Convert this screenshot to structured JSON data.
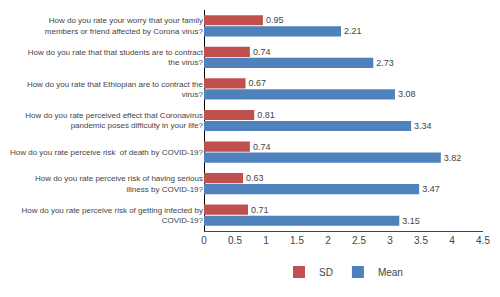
{
  "chart_data": {
    "type": "bar",
    "orientation": "horizontal",
    "categories": [
      "How do you rate your worry that your family\nmembers or friend affected by Corona virus?",
      "How do you rate that that students are to contract\nthe virus?",
      "How do you rate that Ethiopian are to contract the\nvirus?",
      "How do you rate perceived effect that Coronavirus\npandemic poses difficulty in your life?",
      "How do you rate perceive risk  of death by COVID-19?",
      "How do you rate perceive risk of having serious\nillness by COVID-19?",
      "How do you rate perceive risk of getting infected by\nCOVID-19?"
    ],
    "series": [
      {
        "name": "SD",
        "color": "#c0504d",
        "values": [
          0.95,
          0.74,
          0.67,
          0.81,
          0.74,
          0.63,
          0.71
        ]
      },
      {
        "name": "Mean",
        "color": "#4f81bd",
        "values": [
          2.21,
          2.73,
          3.08,
          3.34,
          3.82,
          3.47,
          3.15
        ]
      }
    ],
    "xlim": [
      0,
      4.5
    ],
    "xticks": [
      0,
      0.5,
      1,
      1.5,
      2,
      2.5,
      3,
      3.5,
      4,
      4.5
    ],
    "data_labels": true,
    "grid": false,
    "legend": "bottom"
  }
}
